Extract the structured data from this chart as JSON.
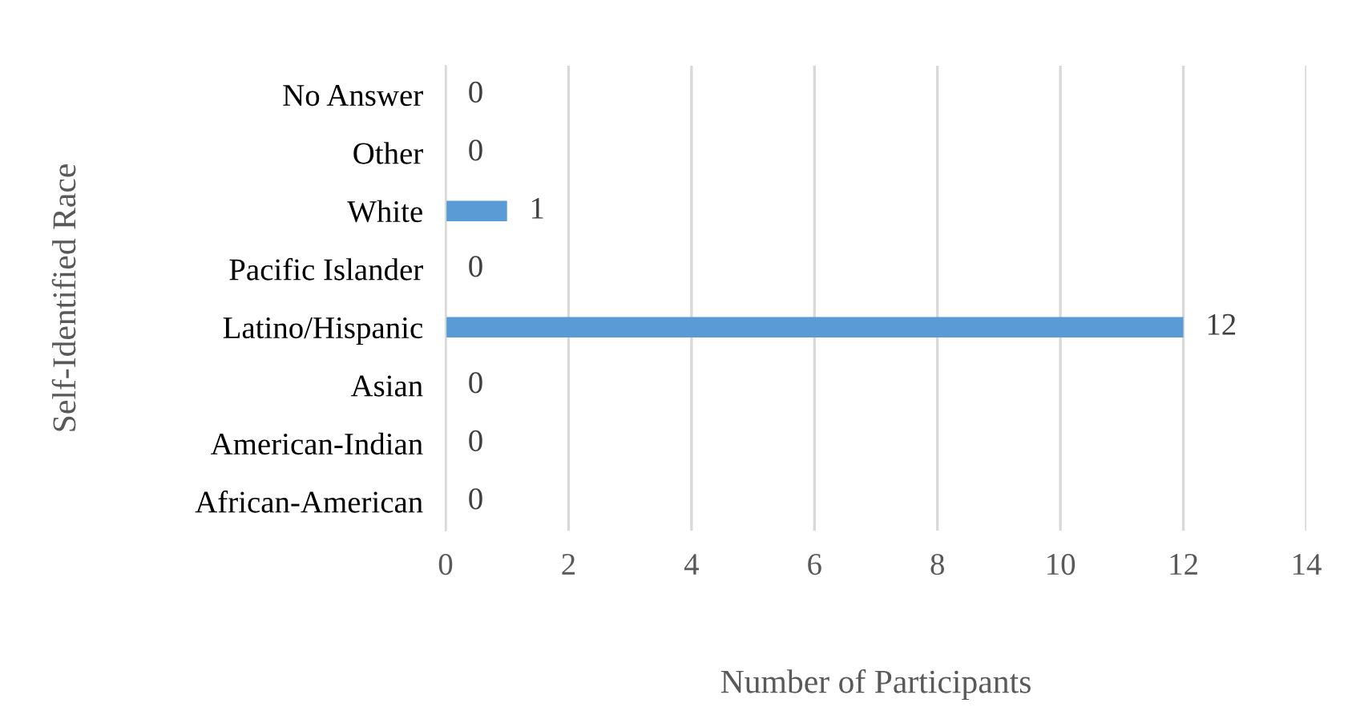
{
  "chart_data": {
    "type": "bar",
    "orientation": "horizontal",
    "xlabel": "Number of Participants",
    "ylabel": "Self-Identified Race",
    "categories": [
      "No Answer",
      "Other",
      "White",
      "Pacific Islander",
      "Latino/Hispanic",
      "Asian",
      "American-Indian",
      "African-American"
    ],
    "values": [
      0,
      0,
      1,
      0,
      12,
      0,
      0,
      0
    ],
    "color": "#5b9bd5",
    "xlim": [
      0,
      14
    ],
    "xticks": [
      0,
      2,
      4,
      6,
      8,
      10,
      12,
      14
    ],
    "grid": "x",
    "data_labels": true,
    "legend": false
  }
}
